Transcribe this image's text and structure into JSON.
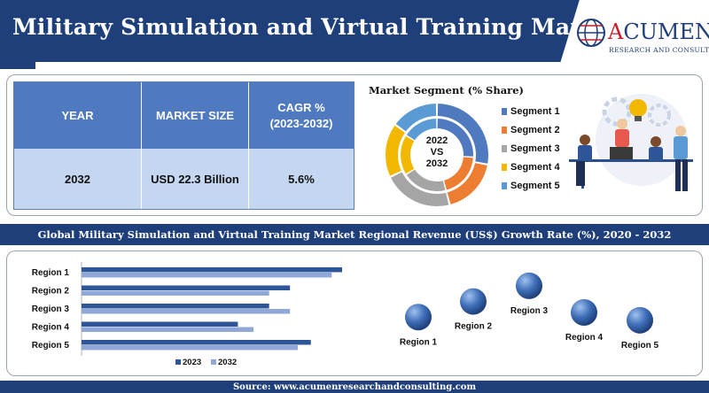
{
  "header": {
    "title": "Military Simulation and Virtual Training Market",
    "logo_name_first": "A",
    "logo_name_rest": "CUMEN",
    "logo_sub": "RESEARCH AND CONSULTING"
  },
  "stats": {
    "headers": {
      "year": "YEAR",
      "market_size": "MARKET SIZE",
      "cagr_line1": "CAGR %",
      "cagr_line2": "(2023-2032)"
    },
    "row": {
      "year": "2032",
      "market_size": "USD 22.3 Billion",
      "cagr": "5.6%"
    }
  },
  "segments": {
    "title": "Market Segment (% Share)",
    "center_line1": "2022",
    "center_line2": "VS",
    "center_line3": "2032",
    "items": [
      {
        "label": "Segment 1",
        "color": "#4f7ac0",
        "outer": 28,
        "inner": 26
      },
      {
        "label": "Segment 2",
        "color": "#ed7d31",
        "outer": 18,
        "inner": 20
      },
      {
        "label": "Segment 3",
        "color": "#a5a5a5",
        "outer": 22,
        "inner": 20
      },
      {
        "label": "Segment 4",
        "color": "#f2b800",
        "outer": 17,
        "inner": 18
      },
      {
        "label": "Segment 5",
        "color": "#5b9bd5",
        "outer": 15,
        "inner": 16
      }
    ]
  },
  "regional": {
    "title": "Global Military Simulation and Virtual Training Market Regional Revenue (US$) Growth Rate (%), 2020 - 2032"
  },
  "chart_data": [
    {
      "type": "bar",
      "orientation": "horizontal",
      "categories": [
        "Region 1",
        "Region 2",
        "Region 3",
        "Region 4",
        "Region 5"
      ],
      "series": [
        {
          "name": "2023",
          "color": "#2e5597",
          "values": [
            100,
            80,
            72,
            60,
            88
          ]
        },
        {
          "name": "2032",
          "color": "#8fa8d8",
          "values": [
            96,
            72,
            80,
            66,
            83
          ]
        }
      ],
      "legend": "bottom",
      "grid": false
    },
    {
      "type": "scatter",
      "categories": [
        "Region 1",
        "Region 2",
        "Region 3",
        "Region 4",
        "Region 5"
      ],
      "values": [
        2,
        3,
        4,
        2.3,
        1.8
      ],
      "legend": "none"
    }
  ],
  "footer": {
    "source": "Source: www.acumenresearchandconsulting.com"
  }
}
